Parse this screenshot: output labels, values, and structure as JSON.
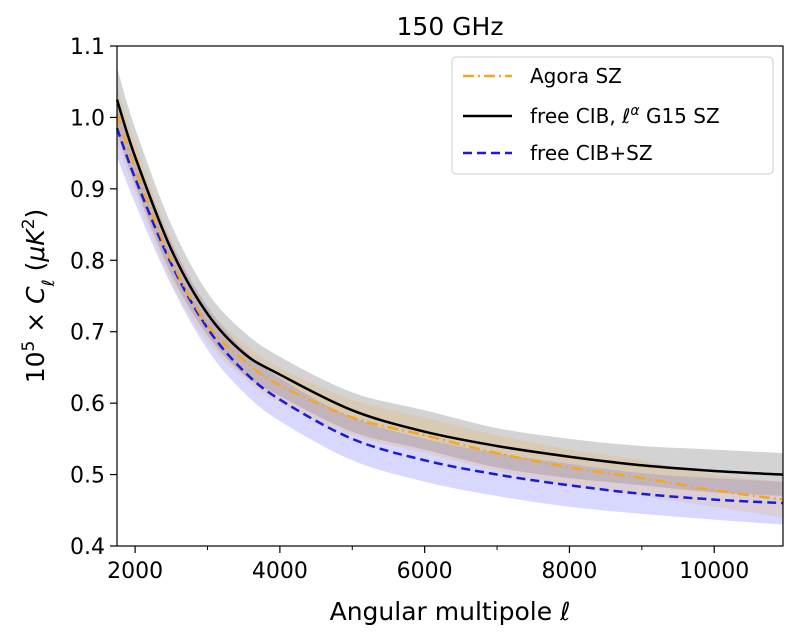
{
  "chart_data": {
    "type": "line",
    "title": "150 GHz",
    "xlabel": "Angular multipole ℓ",
    "ylabel": "10⁵ × C_ℓ (μK²)",
    "xlim": [
      1750,
      10950
    ],
    "ylim": [
      0.4,
      1.1
    ],
    "xticks": [
      2000,
      4000,
      6000,
      8000,
      10000
    ],
    "yticks": [
      0.4,
      0.5,
      0.6,
      0.7,
      0.8,
      0.9,
      1.0,
      1.1
    ],
    "legend": {
      "placement": "top-right"
    },
    "grid": false,
    "series": [
      {
        "name": "Agora SZ",
        "color": "#f5a623",
        "style": "dashdot",
        "band_color": "#f5a623",
        "band_opacity": 0.18,
        "x": [
          1750,
          2000,
          2500,
          3000,
          3500,
          4000,
          5000,
          6000,
          7000,
          8000,
          9000,
          10000,
          10950
        ],
        "y": [
          1.005,
          0.93,
          0.8,
          0.71,
          0.66,
          0.625,
          0.58,
          0.555,
          0.53,
          0.51,
          0.495,
          0.478,
          0.465
        ],
        "lower": [
          0.965,
          0.895,
          0.77,
          0.685,
          0.635,
          0.6,
          0.555,
          0.53,
          0.505,
          0.485,
          0.47,
          0.455,
          0.44
        ],
        "upper": [
          1.045,
          0.965,
          0.83,
          0.735,
          0.685,
          0.65,
          0.605,
          0.58,
          0.555,
          0.535,
          0.52,
          0.5,
          0.49
        ]
      },
      {
        "name": "free CIB, ℓ^α G15 SZ",
        "color": "#000000",
        "style": "solid",
        "band_color": "#808080",
        "band_opacity": 0.35,
        "x": [
          1750,
          2000,
          2500,
          3000,
          3500,
          4000,
          5000,
          6000,
          7000,
          8000,
          9000,
          10000,
          10950
        ],
        "y": [
          1.025,
          0.945,
          0.815,
          0.725,
          0.67,
          0.64,
          0.59,
          0.56,
          0.54,
          0.525,
          0.513,
          0.505,
          0.5
        ],
        "lower": [
          0.98,
          0.905,
          0.78,
          0.695,
          0.64,
          0.61,
          0.56,
          0.535,
          0.51,
          0.495,
          0.485,
          0.475,
          0.47
        ],
        "upper": [
          1.07,
          0.985,
          0.85,
          0.755,
          0.7,
          0.665,
          0.615,
          0.59,
          0.565,
          0.55,
          0.54,
          0.535,
          0.53
        ]
      },
      {
        "name": "free CIB+SZ",
        "color": "#1a1adc",
        "style": "dashed",
        "band_color": "#7070ff",
        "band_opacity": 0.28,
        "x": [
          1750,
          2000,
          2500,
          3000,
          3500,
          4000,
          5000,
          6000,
          7000,
          8000,
          9000,
          10000,
          10950
        ],
        "y": [
          0.985,
          0.915,
          0.795,
          0.705,
          0.645,
          0.605,
          0.55,
          0.52,
          0.5,
          0.485,
          0.473,
          0.465,
          0.46
        ],
        "lower": [
          0.945,
          0.88,
          0.765,
          0.675,
          0.615,
          0.575,
          0.52,
          0.49,
          0.47,
          0.455,
          0.445,
          0.437,
          0.43
        ],
        "upper": [
          1.025,
          0.95,
          0.825,
          0.735,
          0.675,
          0.635,
          0.58,
          0.55,
          0.53,
          0.515,
          0.502,
          0.495,
          0.49
        ]
      }
    ]
  }
}
